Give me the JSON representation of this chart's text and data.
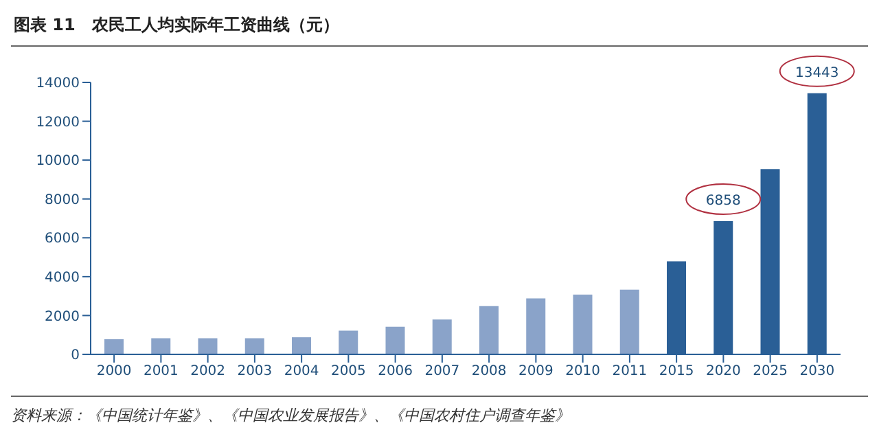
{
  "chart_data": {
    "type": "bar",
    "title": "图表 11　农民工人均实际年工资曲线（元）",
    "categories": [
      "2000",
      "2001",
      "2002",
      "2003",
      "2004",
      "2005",
      "2006",
      "2007",
      "2008",
      "2009",
      "2010",
      "2011",
      "2015",
      "2020",
      "2025",
      "2030"
    ],
    "values": [
      780,
      830,
      830,
      830,
      880,
      1220,
      1420,
      1790,
      2480,
      2880,
      3080,
      3330,
      4790,
      6858,
      9540,
      13443
    ],
    "colors": [
      "#8aa3c9",
      "#8aa3c9",
      "#8aa3c9",
      "#8aa3c9",
      "#8aa3c9",
      "#8aa3c9",
      "#8aa3c9",
      "#8aa3c9",
      "#8aa3c9",
      "#8aa3c9",
      "#8aa3c9",
      "#8aa3c9",
      "#2a5f96",
      "#2a5f96",
      "#2a5f96",
      "#2a5f96"
    ],
    "value_labels": [
      null,
      null,
      null,
      null,
      null,
      null,
      null,
      null,
      null,
      null,
      null,
      null,
      null,
      "6858",
      null,
      "13443"
    ],
    "ylim": [
      0,
      14000
    ],
    "yticks": [
      0,
      2000,
      4000,
      6000,
      8000,
      10000,
      12000,
      14000
    ],
    "grid": false,
    "legend": false,
    "annotations": [
      "资料来源：《中国统计年鉴》、《中国农业发展报告》、《中国农村住户调查年鉴》"
    ]
  }
}
